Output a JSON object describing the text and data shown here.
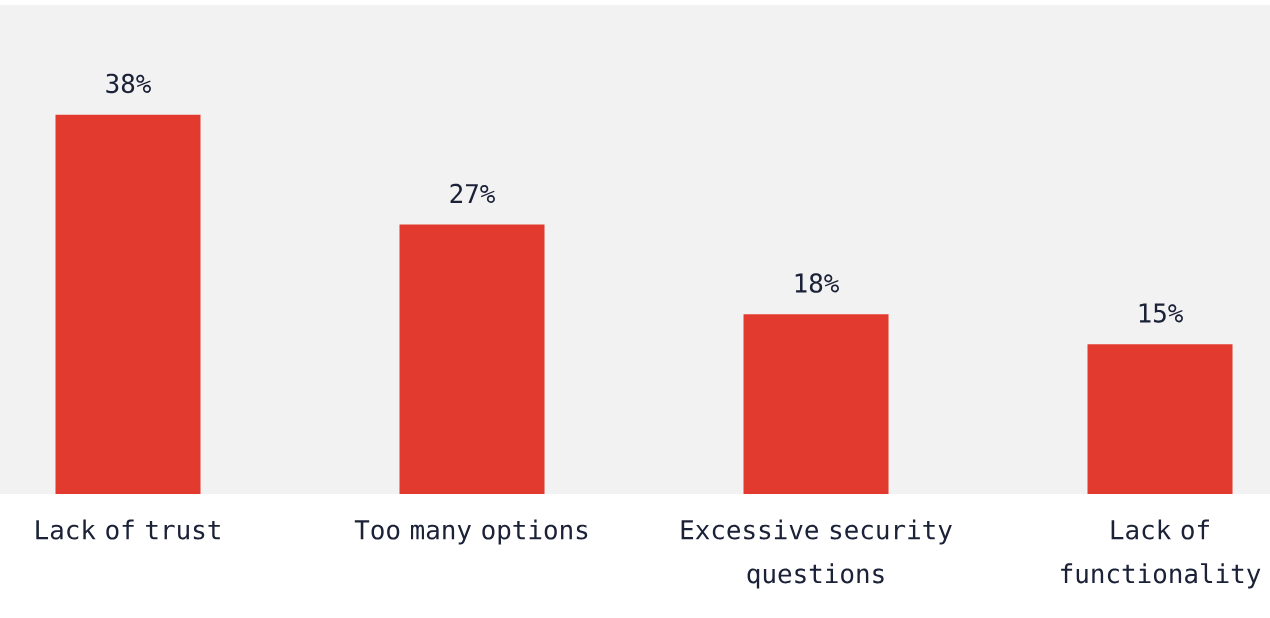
{
  "chart_data": {
    "type": "bar",
    "categories": [
      "Lack of trust",
      "Too many options",
      "Excessive security questions",
      "Lack of functionality"
    ],
    "values": [
      38,
      27,
      18,
      15
    ],
    "value_labels": [
      "38%",
      "27%",
      "18%",
      "15%"
    ],
    "color": "#e23a2e",
    "ylim": [
      0,
      49
    ]
  }
}
